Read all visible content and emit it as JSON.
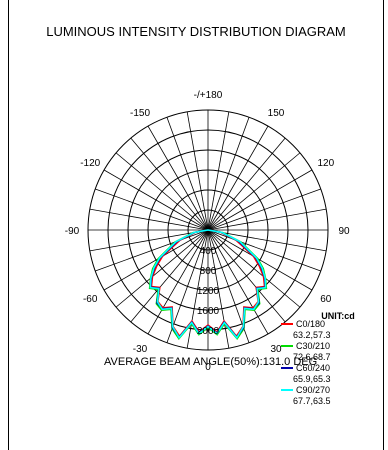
{
  "chart_data": {
    "type": "polar",
    "title": "LUMINOUS INTENSITY DISTRIBUTION DIAGRAM",
    "unit_label": "UNIT:cd",
    "beam_label": "AVERAGE BEAM ANGLE(50%):131.0 DEG",
    "radial_ticks": [
      "400",
      "800",
      "1200",
      "1600",
      "2000"
    ],
    "radial_values": [
      400,
      800,
      1200,
      1600,
      2000
    ],
    "radial_max": 2400,
    "angle_labels": [
      {
        "text": "-/+180",
        "deg": 180
      },
      {
        "text": "150",
        "deg": 150
      },
      {
        "text": "120",
        "deg": 120
      },
      {
        "text": "90",
        "deg": 90
      },
      {
        "text": "60",
        "deg": 60
      },
      {
        "text": "30",
        "deg": 30
      },
      {
        "text": "0",
        "deg": 0
      },
      {
        "text": "-30",
        "deg": -30
      },
      {
        "text": "-60",
        "deg": -60
      },
      {
        "text": "-90",
        "deg": -90
      },
      {
        "text": "-120",
        "deg": -120
      },
      {
        "text": "-150",
        "deg": -150
      }
    ],
    "angles": [
      -90,
      -80,
      -70,
      -60,
      -55,
      -50,
      -45,
      -40,
      -35,
      -30,
      -25,
      -20,
      -15,
      -10,
      -5,
      0,
      5,
      10,
      15,
      20,
      25,
      30,
      35,
      40,
      45,
      50,
      55,
      60,
      70,
      80,
      90
    ],
    "series": [
      {
        "name": "C0/180",
        "beam": "63.2,57.3",
        "color": "#ff0000",
        "values": [
          0,
          250,
          600,
          1050,
          1250,
          1450,
          1600,
          1500,
          1750,
          1800,
          1700,
          2050,
          2200,
          1850,
          2050,
          1900,
          2050,
          1850,
          2200,
          2050,
          1700,
          1800,
          1750,
          1500,
          1600,
          1450,
          1250,
          1050,
          600,
          250,
          0
        ]
      },
      {
        "name": "C30/210",
        "beam": "72.6,68.7",
        "color": "#00dd00",
        "values": [
          0,
          300,
          700,
          1150,
          1350,
          1500,
          1650,
          1550,
          1800,
          1850,
          1750,
          2100,
          2250,
          1900,
          2100,
          1950,
          2100,
          1900,
          2250,
          2100,
          1750,
          1850,
          1800,
          1550,
          1650,
          1500,
          1350,
          1150,
          700,
          300,
          0
        ]
      },
      {
        "name": "C60/240",
        "beam": "65.9,65.3",
        "color": "#0000aa",
        "values": [
          0,
          270,
          650,
          1100,
          1300,
          1480,
          1620,
          1520,
          1780,
          1820,
          1720,
          2080,
          2220,
          1870,
          2070,
          1920,
          2070,
          1870,
          2220,
          2080,
          1720,
          1820,
          1780,
          1520,
          1620,
          1480,
          1300,
          1100,
          650,
          270,
          0
        ]
      },
      {
        "name": "C90/270",
        "beam": "67.7,63.5",
        "color": "#00ffff",
        "values": [
          0,
          280,
          680,
          1120,
          1320,
          1490,
          1630,
          1530,
          1760,
          1830,
          1730,
          2060,
          2230,
          1880,
          2080,
          1930,
          2080,
          1880,
          2230,
          2060,
          1730,
          1830,
          1760,
          1530,
          1630,
          1490,
          1320,
          1120,
          680,
          280,
          0
        ]
      }
    ]
  }
}
